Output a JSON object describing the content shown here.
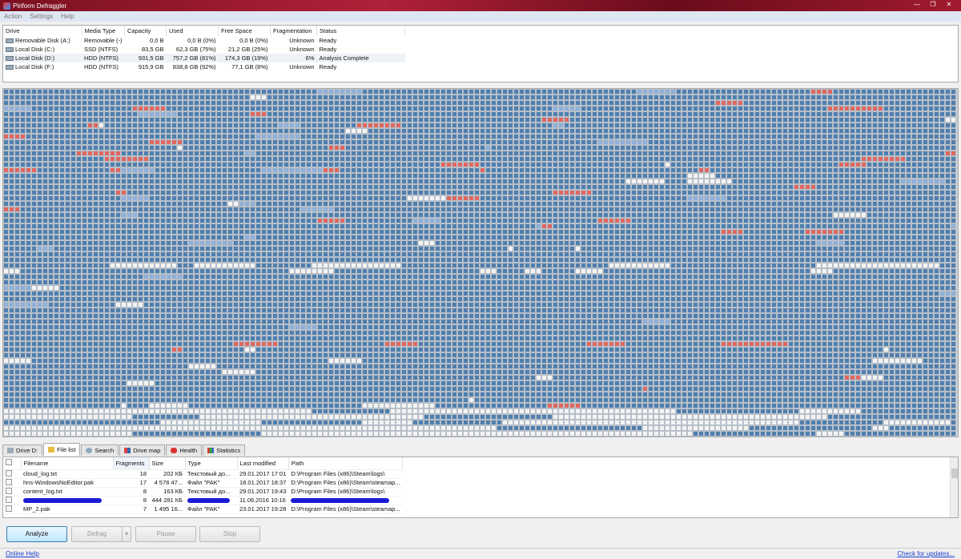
{
  "window": {
    "title": "Piriform Defraggler",
    "minimize": "—",
    "restore": "❐",
    "close": "✕"
  },
  "menu": [
    "Action",
    "Settings",
    "Help"
  ],
  "drives": {
    "columns": [
      "Drive",
      "Media Type",
      "Capacity",
      "Used",
      "Free Space",
      "Fragmentation",
      "Status"
    ],
    "rows": [
      [
        "Removable Disk (A:)",
        "Removable (-)",
        "0,0 B",
        "0,0 B (0%)",
        "0,0 B (0%)",
        "Unknown",
        "Ready"
      ],
      [
        "Local Disk (C:)",
        "SSD (NTFS)",
        "83,5 GB",
        "62,3 GB (75%)",
        "21,2 GB (25%)",
        "Unknown",
        "Ready"
      ],
      [
        "Local Disk (D:)",
        "HDD (NTFS)",
        "931,5 GB",
        "757,2 GB (81%)",
        "174,3 GB (19%)",
        "6%",
        "Analysis Complete"
      ],
      [
        "Local Disk (F:)",
        "HDD (NTFS)",
        "915,9 GB",
        "838,8 GB (92%)",
        "77,1 GB (8%)",
        "Unknown",
        "Ready"
      ]
    ]
  },
  "drive_map": {
    "colors": {
      "used": "#4f7fae",
      "fragmented": "#e0675f",
      "free": "#f4f4f4",
      "partial": "#8fb0d8"
    }
  },
  "tabs": [
    "Drive D:",
    "File list",
    "Search",
    "Drive map",
    "Health",
    "Statistics"
  ],
  "file_list": {
    "columns": [
      "Filename",
      "Fragments",
      "Size",
      "Type",
      "Last modified",
      "Path"
    ],
    "rows": [
      [
        "cloud_log.txt",
        "18",
        "202 КБ",
        "Текстовый до...",
        "29.01.2017 17:01",
        "D:\\Program Files (x86)\\Steam\\logs\\"
      ],
      [
        "hns-WindowsNoEditor.pak",
        "17",
        "4 578 47...",
        "Файл \"PAK\"",
        "18.01.2017 18:37",
        "D:\\Program Files (x86)\\Steam\\steamap..."
      ],
      [
        "content_log.txt",
        "8",
        "163 КБ",
        "Текстовый до...",
        "29.01.2017 19:43",
        "D:\\Program Files (x86)\\Steam\\logs\\"
      ],
      [
        "",
        "8",
        "444 281 КБ",
        "",
        "11.06.2016 10:16",
        ""
      ],
      [
        "MP_2.pak",
        "7",
        "1 495 16...",
        "Файл \"PAK\"",
        "23.01.2017 19:28",
        "D:\\Program Files (x86)\\Steam\\steamap..."
      ]
    ]
  },
  "buttons": {
    "analyze": "Analyze",
    "defrag": "Defrag",
    "pause": "Pause",
    "stop": "Stop"
  },
  "footer": {
    "help": "Online Help",
    "updates": "Check for updates..."
  }
}
